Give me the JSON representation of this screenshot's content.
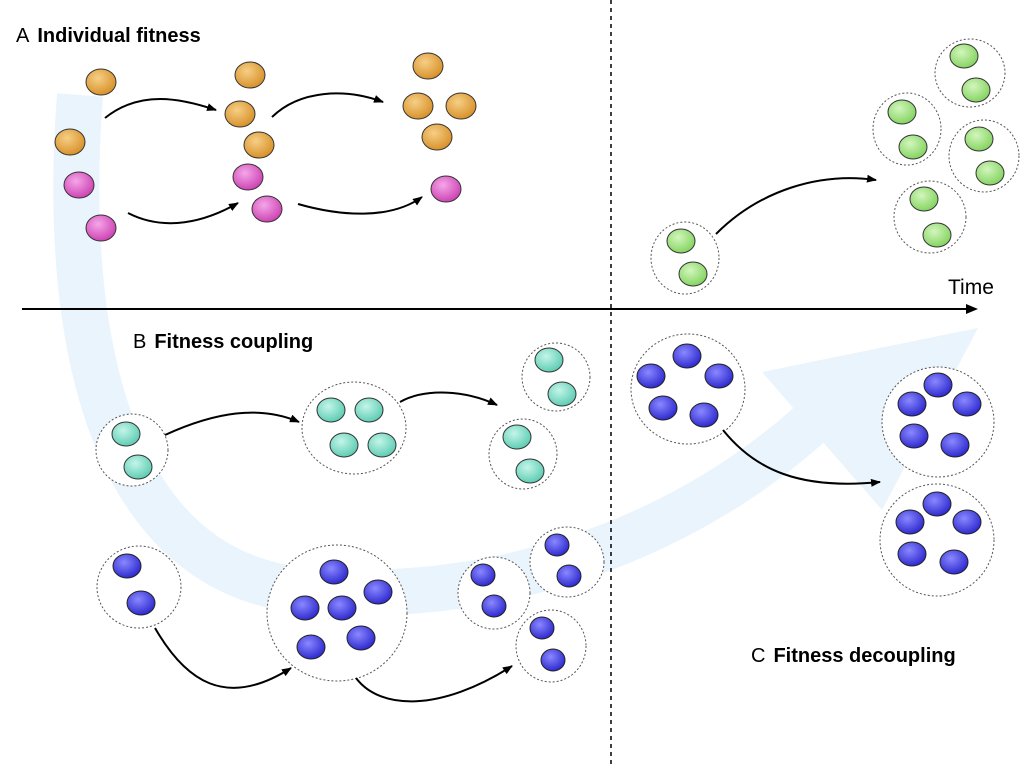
{
  "panels": {
    "a": {
      "letter": "A",
      "title": "Individual fitness"
    },
    "b": {
      "letter": "B",
      "title": "Fitness coupling"
    },
    "c": {
      "letter": "C",
      "title": "Fitness decoupling"
    }
  },
  "axis": {
    "time_label": "Time"
  },
  "colors": {
    "orange_cell": "#e1a33f",
    "magenta_cell": "#da5fc4",
    "green_cell": "#9ce07c",
    "teal_cell": "#78dcc4",
    "blue_cell": "#4845e2",
    "big_arrow": "#eaf4fd"
  }
}
